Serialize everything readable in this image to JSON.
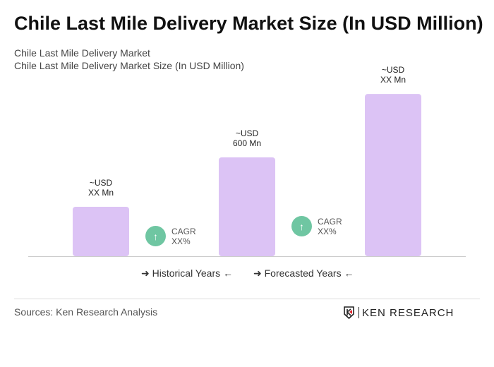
{
  "title": "Chile Last Mile Delivery Market Size (In USD Million)",
  "subtitle1": "Chile Last Mile Delivery Market",
  "subtitle2": "Chile Last Mile Delivery Market Size (In USD Million)",
  "chart_data": {
    "type": "bar",
    "categories": [
      "",
      "",
      ""
    ],
    "values": [
      300,
      600,
      985
    ],
    "data_labels": [
      [
        "~USD",
        "XX Mn"
      ],
      [
        "~USD",
        "600 Mn"
      ],
      [
        "~USD",
        "XX Mn"
      ]
    ],
    "bar_color": "#dcc3f5",
    "grid": false
  },
  "cagr": [
    {
      "label": "CAGR",
      "value": "XX%"
    },
    {
      "label": "CAGR",
      "value": "XX%"
    }
  ],
  "legend": {
    "historical": "Historical Years",
    "forecasted": "Forecasted Years"
  },
  "sources": "Sources: Ken Research Analysis",
  "logo": "KEN RESEARCH",
  "colors": {
    "cagr": "#6fc6a2",
    "logo_accent": "#e0242b"
  }
}
